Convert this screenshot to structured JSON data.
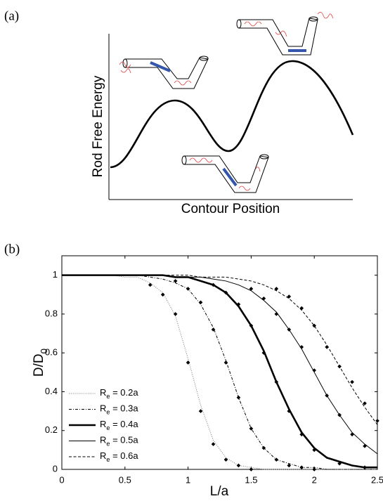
{
  "panel_a": {
    "label": "(a)",
    "y_label": "Rod Free Energy",
    "x_label": "Contour Position"
  },
  "chart_data": {
    "type": "line",
    "panel_label": "(b)",
    "x_label": "L/a",
    "y_label": "D/D0",
    "xlim": [
      0,
      2.5
    ],
    "ylim": [
      0,
      1.1
    ],
    "xticks": [
      0,
      0.5,
      1,
      1.5,
      2,
      2.5
    ],
    "yticks": [
      0,
      0.2,
      0.4,
      0.6,
      0.8,
      1
    ],
    "legend": "lower left",
    "grid": false,
    "x": [
      0,
      0.1,
      0.2,
      0.3,
      0.4,
      0.5,
      0.6,
      0.7,
      0.8,
      0.9,
      1.0,
      1.1,
      1.2,
      1.3,
      1.4,
      1.5,
      1.6,
      1.7,
      1.8,
      1.9,
      2.0,
      2.1,
      2.2,
      2.3,
      2.4,
      2.5
    ],
    "series": [
      {
        "name": "Re = 0.2a",
        "color": "#888888",
        "style": "dotted",
        "line_width": 1,
        "values": [
          1,
          1,
          1,
          1,
          1,
          0.99,
          0.99,
          0.96,
          0.91,
          0.79,
          0.57,
          0.33,
          0.15,
          0.06,
          0.02,
          0.01,
          0,
          0,
          0,
          0,
          0,
          0,
          0,
          0,
          0,
          0
        ],
        "points": {
          "x": [
            0.7,
            0.8,
            0.9,
            1.0,
            1.1,
            1.2,
            1.3,
            1.4,
            1.5
          ],
          "y": [
            0.95,
            0.9,
            0.8,
            0.55,
            0.3,
            0.13,
            0.05,
            0.02,
            0
          ]
        }
      },
      {
        "name": "Re = 0.3a",
        "color": "#000000",
        "style": "dashdot",
        "line_width": 1,
        "values": [
          1,
          1,
          1,
          1,
          1,
          1,
          1,
          0.99,
          0.98,
          0.96,
          0.93,
          0.85,
          0.73,
          0.56,
          0.37,
          0.21,
          0.11,
          0.05,
          0.03,
          0.01,
          0.01,
          0,
          0,
          0,
          0,
          0
        ],
        "points": {
          "x": [
            0.9,
            1.0,
            1.1,
            1.2,
            1.3,
            1.4,
            1.5,
            1.6,
            1.7,
            1.8,
            1.9,
            2.0
          ],
          "y": [
            0.97,
            0.93,
            0.86,
            0.72,
            0.55,
            0.37,
            0.21,
            0.11,
            0.05,
            0.02,
            0.01,
            0
          ]
        }
      },
      {
        "name": "Re = 0.4a",
        "color": "#000000",
        "style": "solid",
        "line_width": 2.6,
        "values": [
          1,
          1,
          1,
          1,
          1,
          1,
          1,
          1,
          1,
          0.99,
          0.99,
          0.97,
          0.95,
          0.91,
          0.84,
          0.74,
          0.61,
          0.45,
          0.31,
          0.19,
          0.11,
          0.06,
          0.04,
          0.02,
          0.01,
          0.01
        ],
        "points": {
          "x": [
            1.2,
            1.3,
            1.4,
            1.5,
            1.6,
            1.7,
            1.8,
            1.9,
            2.0,
            2.2,
            2.4
          ],
          "y": [
            0.95,
            0.91,
            0.85,
            0.74,
            0.6,
            0.45,
            0.3,
            0.18,
            0.1,
            0.03,
            0.01
          ]
        }
      },
      {
        "name": "Re = 0.5a",
        "color": "#000000",
        "style": "solid",
        "line_width": 1,
        "values": [
          1,
          1,
          1,
          1,
          1,
          1,
          1,
          1,
          1,
          0.99,
          0.99,
          0.99,
          0.98,
          0.97,
          0.95,
          0.92,
          0.87,
          0.81,
          0.72,
          0.62,
          0.5,
          0.38,
          0.28,
          0.19,
          0.13,
          0.08
        ],
        "points": {
          "x": [
            1.5,
            1.6,
            1.7,
            1.8,
            1.9,
            2.0,
            2.1,
            2.2,
            2.3,
            2.4
          ],
          "y": [
            0.93,
            0.88,
            0.8,
            0.72,
            0.63,
            0.51,
            0.38,
            0.28,
            0.18,
            0.12
          ]
        }
      },
      {
        "name": "Re = 0.6a",
        "color": "#000000",
        "style": "dashed",
        "line_width": 1,
        "values": [
          1,
          1,
          1,
          1,
          1,
          1,
          1,
          1,
          1,
          1,
          1,
          0.99,
          0.99,
          0.99,
          0.98,
          0.97,
          0.95,
          0.92,
          0.88,
          0.82,
          0.74,
          0.64,
          0.53,
          0.42,
          0.32,
          0.23
        ],
        "points": {
          "x": [
            1.7,
            1.8,
            1.9,
            2.0,
            2.1,
            2.2,
            2.3,
            2.4,
            2.5
          ],
          "y": [
            0.93,
            0.89,
            0.83,
            0.74,
            0.63,
            0.53,
            0.45,
            0.34,
            0.25
          ]
        }
      }
    ]
  }
}
